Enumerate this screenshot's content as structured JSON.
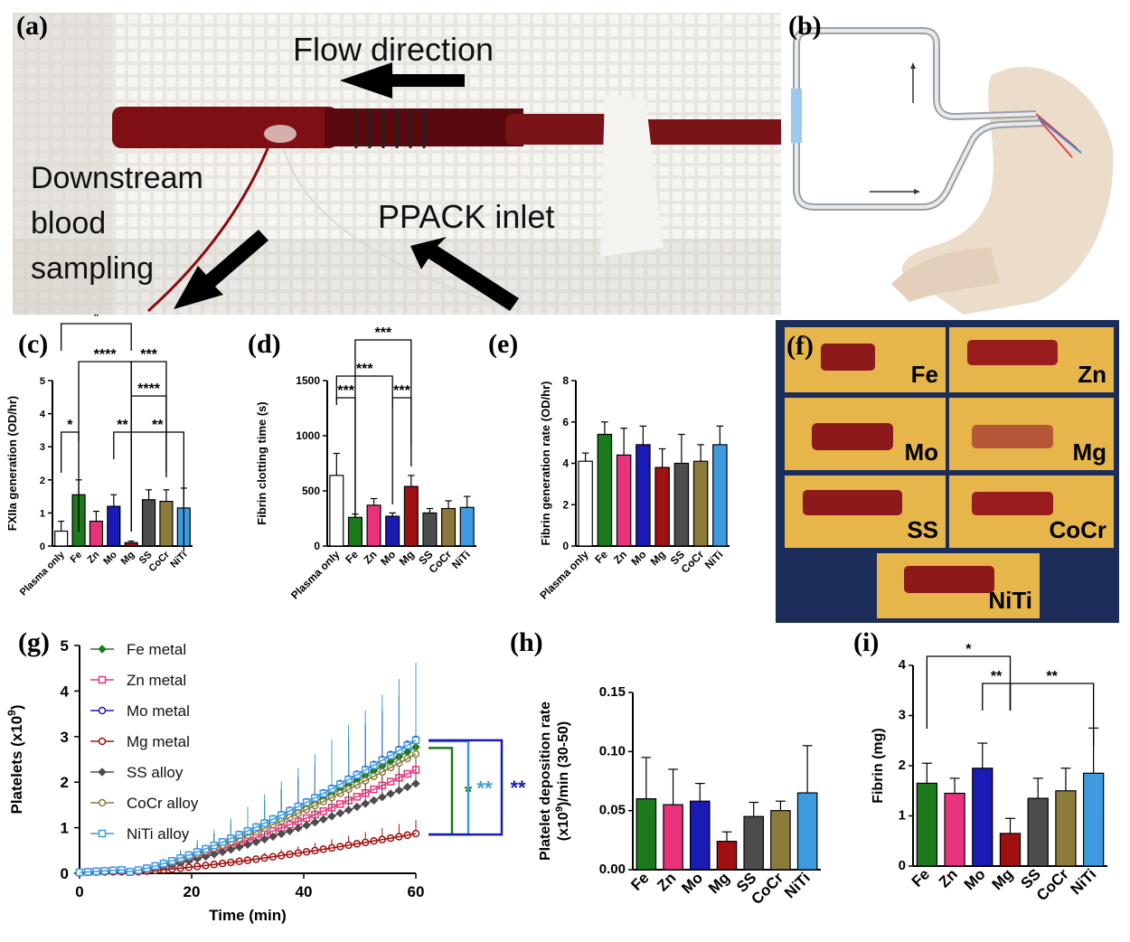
{
  "panel_labels": {
    "a": "(a)",
    "b": "(b)",
    "c": "(c)",
    "d": "(d)",
    "e": "(e)",
    "f": "(f)",
    "g": "(g)",
    "h": "(h)",
    "i": "(i)"
  },
  "photo_a": {
    "flow": "Flow direction",
    "downstream": [
      "Downstream",
      "blood",
      "sampling"
    ],
    "ppack": "PPACK inlet"
  },
  "photo_f": {
    "tiles": [
      "Fe",
      "Zn",
      "Mo",
      "Mg",
      "SS",
      "CoCr",
      "NiTi"
    ]
  },
  "colors": {
    "Fe": "#1b7a1b",
    "Zn": "#e8337c",
    "Mo": "#1a1ab4",
    "Mg": "#a01010",
    "SS": "#4d4d4d",
    "CoCr": "#8c7a3c",
    "NiTi": "#3f9be0",
    "Plasma only": "#ffffff"
  },
  "chart_data": [
    {
      "id": "c",
      "type": "bar",
      "ylabel": "FXIIa generation (OD/hr)",
      "ylim": [
        0,
        5
      ],
      "yticks": [
        "0",
        "1",
        "2",
        "3",
        "4",
        "5"
      ],
      "categories": [
        "Plasma only",
        "Fe",
        "Zn",
        "Mo",
        "Mg",
        "SS",
        "CoCr",
        "NiTi"
      ],
      "values": [
        0.45,
        1.55,
        0.75,
        1.2,
        0.1,
        1.4,
        1.35,
        1.15
      ],
      "err": [
        0.3,
        0.45,
        0.3,
        0.35,
        0.05,
        0.3,
        0.35,
        0.6
      ],
      "significance": [
        {
          "from": "Plasma only",
          "to": "Mg",
          "label": "*"
        },
        {
          "from": "Fe",
          "to": "Mg",
          "label": "****"
        },
        {
          "from": "Mg",
          "to": "CoCr",
          "label": "***"
        },
        {
          "from": "Mg",
          "to": "CoCr",
          "label": "****"
        },
        {
          "from": "Plasma only",
          "to": "Fe",
          "label": "*"
        },
        {
          "from": "Mo",
          "to": "Mg",
          "label": "**"
        },
        {
          "from": "Mg",
          "to": "NiTi",
          "label": "**"
        }
      ]
    },
    {
      "id": "d",
      "type": "bar",
      "ylabel": "Fibrin clotting time (s)",
      "ylim": [
        0,
        1500
      ],
      "yticks": [
        "0",
        "500",
        "1000",
        "1500"
      ],
      "categories": [
        "Plasma only",
        "Fe",
        "Zn",
        "Mo",
        "Mg",
        "SS",
        "CoCr",
        "NiTi"
      ],
      "values": [
        640,
        260,
        370,
        270,
        540,
        300,
        340,
        350
      ],
      "err": [
        200,
        30,
        60,
        30,
        100,
        40,
        70,
        100
      ],
      "significance": [
        {
          "from": "Fe",
          "to": "Mg",
          "label": "***"
        },
        {
          "from": "Plasma only",
          "to": "Mo",
          "label": "***"
        },
        {
          "from": "Plasma only",
          "to": "Fe",
          "label": "***"
        },
        {
          "from": "Mo",
          "to": "Mg",
          "label": "***"
        }
      ]
    },
    {
      "id": "e",
      "type": "bar",
      "ylabel": "Fibrin generation rate (OD/hr)",
      "ylim": [
        0,
        8
      ],
      "yticks": [
        "0",
        "2",
        "4",
        "6",
        "8"
      ],
      "categories": [
        "Plasma only",
        "Fe",
        "Zn",
        "Mo",
        "Mg",
        "SS",
        "CoCr",
        "NiTi"
      ],
      "values": [
        4.1,
        5.4,
        4.4,
        4.9,
        3.8,
        4.0,
        4.1,
        4.9
      ],
      "err": [
        0.4,
        0.6,
        1.3,
        0.9,
        0.9,
        1.4,
        0.8,
        0.9
      ]
    },
    {
      "id": "g",
      "type": "line",
      "xlabel": "Time (min)",
      "ylabel": "Platelets (x10",
      "ylabel_sup": "9",
      "ylabel_end": ")",
      "xlim": [
        0,
        60
      ],
      "ylim": [
        0,
        5
      ],
      "xticks": [
        "0",
        "20",
        "40",
        "60"
      ],
      "yticks": [
        "0",
        "1",
        "2",
        "3",
        "4",
        "5"
      ],
      "series": [
        {
          "name": "Fe metal",
          "color": "#1b7a1b",
          "marker": "diamond",
          "end": 2.75,
          "err": 1.4
        },
        {
          "name": "Zn metal",
          "color": "#e8337c",
          "marker": "square",
          "end": 2.25,
          "err": 1.1
        },
        {
          "name": "Mo metal",
          "color": "#1a1ab4",
          "marker": "circle",
          "end": 2.92,
          "err": 1.3
        },
        {
          "name": "Mg metal",
          "color": "#a01010",
          "marker": "circle",
          "end": 0.85,
          "err": 0.3
        },
        {
          "name": "SS alloy",
          "color": "#4d4d4d",
          "marker": "diamond",
          "end": 1.95,
          "err": 0.8
        },
        {
          "name": "CoCr alloy",
          "color": "#8c7a3c",
          "marker": "circle",
          "end": 2.6,
          "err": 1.0
        },
        {
          "name": "NiTi alloy",
          "color": "#3f9be0",
          "marker": "square",
          "end": 2.9,
          "err": 1.7
        }
      ],
      "significance": [
        {
          "color": "#1b7a1b",
          "label": "*"
        },
        {
          "color": "#3f9be0",
          "label": "**"
        },
        {
          "color": "#1a1ab4",
          "label": "**"
        }
      ]
    },
    {
      "id": "h",
      "type": "bar",
      "ylabel": "Platelet deposition rate",
      "ylabel2": "(x10",
      "ylabel2_sup": "9",
      "ylabel2_end": ")/min (30-50)",
      "ylim": [
        0,
        0.15
      ],
      "yticks": [
        "0.00",
        "0.05",
        "0.10",
        "0.15"
      ],
      "categories": [
        "Fe",
        "Zn",
        "Mo",
        "Mg",
        "SS",
        "CoCr",
        "NiTi"
      ],
      "values": [
        0.06,
        0.055,
        0.058,
        0.024,
        0.045,
        0.05,
        0.065
      ],
      "err": [
        0.035,
        0.03,
        0.015,
        0.008,
        0.012,
        0.008,
        0.04
      ]
    },
    {
      "id": "i",
      "type": "bar",
      "ylabel": "Fibrin (mg)",
      "ylim": [
        0,
        4
      ],
      "yticks": [
        "0",
        "1",
        "2",
        "3",
        "4"
      ],
      "categories": [
        "Fe",
        "Zn",
        "Mo",
        "Mg",
        "SS",
        "CoCr",
        "NiTi"
      ],
      "values": [
        1.65,
        1.45,
        1.95,
        0.65,
        1.35,
        1.5,
        1.85
      ],
      "err": [
        0.4,
        0.3,
        0.5,
        0.3,
        0.4,
        0.45,
        0.9
      ],
      "significance": [
        {
          "from": "Fe",
          "to": "Mg",
          "label": "*"
        },
        {
          "from": "Mo",
          "to": "Mg",
          "label": "**"
        },
        {
          "from": "Mg",
          "to": "NiTi",
          "label": "**"
        }
      ]
    }
  ]
}
